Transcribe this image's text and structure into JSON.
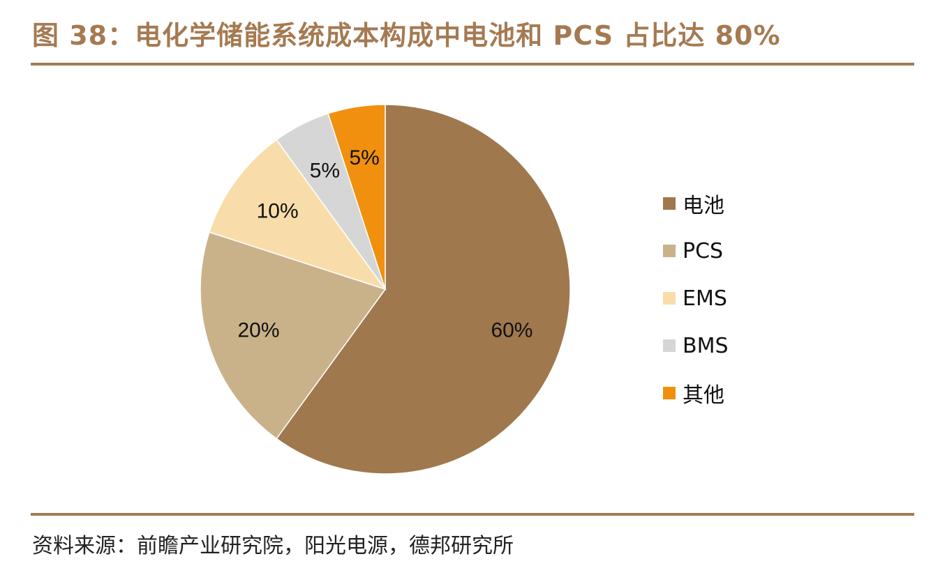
{
  "title": "图 38：电化学储能系统成本构成中电池和 PCS 占比达 80%",
  "source": "资料来源：前瞻产业研究院，阳光电源，德邦研究所",
  "chart_data": {
    "type": "pie",
    "start_angle_deg": 90,
    "direction": "clockwise",
    "slices": [
      {
        "label": "电池",
        "value": 60,
        "data_label": "60%",
        "color": "#A0784E"
      },
      {
        "label": "PCS",
        "value": 20,
        "data_label": "20%",
        "color": "#C9B28A"
      },
      {
        "label": "EMS",
        "value": 10,
        "data_label": "10%",
        "color": "#F8DDAA"
      },
      {
        "label": "BMS",
        "value": 5,
        "data_label": "5%",
        "color": "#D6D6D6"
      },
      {
        "label": "其他",
        "value": 5,
        "data_label": "5%",
        "color": "#F0900E"
      }
    ],
    "legend_position": "right"
  }
}
